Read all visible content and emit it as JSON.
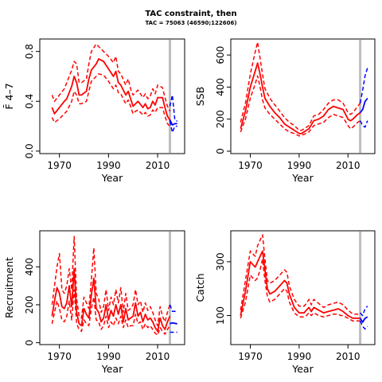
{
  "figure": {
    "title": "TAC constraint, then",
    "subtitle": "TAC = 75063 (46590;122606)"
  },
  "colors": {
    "historic": "#ff0000",
    "projection": "#0000ff",
    "vline": "#bebebe",
    "axis": "#000000"
  },
  "chart_data": [
    {
      "id": "fbar",
      "type": "line",
      "ylabel": "F̄ 4–7",
      "xlabel": "Year",
      "xlim": [
        1962,
        2021
      ],
      "ylim": [
        -0.02,
        0.9
      ],
      "xticks": [
        1970,
        1990,
        2010
      ],
      "xtick_labels": [
        "1970",
        "1990",
        "2010"
      ],
      "yticks": [
        0,
        0.4,
        0.8
      ],
      "ytick_labels": [
        "0.0",
        "0.4",
        "0.8"
      ],
      "vline": 2015,
      "historic": {
        "x": [
          1967,
          1968,
          1970,
          1972,
          1973,
          1975,
          1976,
          1977,
          1978,
          1979,
          1981,
          1982,
          1983,
          1985,
          1986,
          1988,
          1990,
          1992,
          1993,
          1994,
          1995,
          1997,
          1998,
          1999,
          2000,
          2001,
          2002,
          2004,
          2005,
          2006,
          2007,
          2008,
          2009,
          2010,
          2012,
          2013,
          2014,
          2015
        ],
        "median": [
          0.35,
          0.3,
          0.35,
          0.4,
          0.42,
          0.52,
          0.6,
          0.55,
          0.45,
          0.45,
          0.48,
          0.58,
          0.65,
          0.7,
          0.74,
          0.72,
          0.66,
          0.6,
          0.64,
          0.55,
          0.53,
          0.45,
          0.48,
          0.42,
          0.36,
          0.38,
          0.4,
          0.35,
          0.38,
          0.34,
          0.35,
          0.4,
          0.37,
          0.43,
          0.43,
          0.35,
          0.28,
          0.25
        ],
        "lower": [
          0.27,
          0.23,
          0.26,
          0.3,
          0.32,
          0.4,
          0.48,
          0.45,
          0.38,
          0.38,
          0.4,
          0.48,
          0.56,
          0.6,
          0.62,
          0.61,
          0.56,
          0.5,
          0.53,
          0.47,
          0.46,
          0.38,
          0.41,
          0.36,
          0.3,
          0.32,
          0.33,
          0.29,
          0.31,
          0.28,
          0.29,
          0.33,
          0.31,
          0.35,
          0.35,
          0.28,
          0.22,
          0.2
        ],
        "upper": [
          0.45,
          0.4,
          0.45,
          0.5,
          0.55,
          0.65,
          0.72,
          0.7,
          0.55,
          0.55,
          0.58,
          0.7,
          0.8,
          0.86,
          0.84,
          0.8,
          0.76,
          0.71,
          0.76,
          0.64,
          0.62,
          0.53,
          0.58,
          0.5,
          0.45,
          0.47,
          0.49,
          0.43,
          0.46,
          0.42,
          0.44,
          0.5,
          0.46,
          0.53,
          0.51,
          0.43,
          0.36,
          0.32
        ]
      },
      "projection": {
        "x": [
          2015,
          2016,
          2017,
          2018
        ],
        "median": [
          0.25,
          0.21,
          0.22,
          0.22
        ],
        "lower": [
          0.24,
          0.15,
          0.2,
          0.2
        ],
        "upper": [
          0.36,
          0.45,
          0.25,
          0.24
        ]
      }
    },
    {
      "id": "ssb",
      "type": "line",
      "ylabel": "SSB",
      "xlabel": "Year",
      "xlim": [
        1962,
        2021
      ],
      "ylim": [
        -15,
        700
      ],
      "xticks": [
        1970,
        1990,
        2010
      ],
      "xtick_labels": [
        "1970",
        "1990",
        "2010"
      ],
      "yticks": [
        0,
        200,
        400,
        600
      ],
      "ytick_labels": [
        "0",
        "200",
        "400",
        "600"
      ],
      "vline": 2015,
      "historic": {
        "x": [
          1966,
          1968,
          1970,
          1972,
          1973,
          1974,
          1975,
          1976,
          1978,
          1980,
          1982,
          1984,
          1986,
          1988,
          1990,
          1991,
          1992,
          1994,
          1996,
          1998,
          2000,
          2002,
          2004,
          2006,
          2008,
          2010,
          2011,
          2012,
          2014,
          2015
        ],
        "median": [
          140,
          250,
          400,
          500,
          550,
          480,
          400,
          330,
          280,
          240,
          210,
          170,
          150,
          130,
          110,
          110,
          120,
          140,
          190,
          200,
          220,
          260,
          280,
          270,
          260,
          200,
          190,
          200,
          230,
          240
        ],
        "lower": [
          120,
          200,
          330,
          420,
          470,
          400,
          320,
          270,
          230,
          200,
          170,
          140,
          120,
          110,
          95,
          100,
          105,
          120,
          160,
          170,
          180,
          210,
          230,
          220,
          210,
          160,
          140,
          150,
          180,
          190
        ],
        "upper": [
          180,
          300,
          480,
          620,
          680,
          580,
          480,
          390,
          330,
          290,
          250,
          210,
          180,
          160,
          130,
          130,
          140,
          160,
          220,
          230,
          260,
          300,
          320,
          320,
          300,
          240,
          230,
          240,
          280,
          300
        ]
      },
      "projection": {
        "x": [
          2015,
          2016,
          2017,
          2018
        ],
        "median": [
          240,
          260,
          310,
          330
        ],
        "lower": [
          190,
          160,
          150,
          190
        ],
        "upper": [
          300,
          380,
          470,
          520
        ]
      }
    },
    {
      "id": "recruitment",
      "type": "line",
      "ylabel": "Recruitment",
      "xlabel": "Year",
      "xlim": [
        1962,
        2021
      ],
      "ylim": [
        -10,
        590
      ],
      "xticks": [
        1970,
        1990,
        2010
      ],
      "xtick_labels": [
        "1970",
        "1990",
        "2010"
      ],
      "yticks": [
        0,
        200,
        400
      ],
      "ytick_labels": [
        "0",
        "200",
        "400"
      ],
      "vline": 2015,
      "historic": {
        "x": [
          1967,
          1968,
          1969,
          1970,
          1971,
          1972,
          1973,
          1974,
          1975,
          1976,
          1977,
          1978,
          1979,
          1980,
          1981,
          1982,
          1983,
          1984,
          1985,
          1986,
          1987,
          1988,
          1989,
          1990,
          1991,
          1992,
          1993,
          1994,
          1995,
          1996,
          1997,
          1998,
          1999,
          2000,
          2001,
          2002,
          2003,
          2004,
          2005,
          2006,
          2007,
          2008,
          2009,
          2010,
          2011,
          2012,
          2013,
          2014,
          2015
        ],
        "median": [
          140,
          220,
          290,
          260,
          190,
          180,
          210,
          300,
          190,
          390,
          160,
          100,
          90,
          180,
          150,
          130,
          250,
          340,
          180,
          160,
          110,
          130,
          200,
          120,
          170,
          140,
          200,
          150,
          200,
          110,
          180,
          120,
          130,
          140,
          210,
          140,
          160,
          110,
          150,
          120,
          130,
          110,
          80,
          60,
          130,
          90,
          70,
          110,
          140
        ],
        "lower": [
          100,
          160,
          220,
          180,
          120,
          110,
          140,
          220,
          120,
          280,
          100,
          70,
          60,
          120,
          100,
          90,
          180,
          240,
          120,
          110,
          70,
          90,
          140,
          80,
          110,
          90,
          130,
          100,
          140,
          80,
          120,
          80,
          90,
          90,
          150,
          100,
          110,
          70,
          100,
          80,
          90,
          70,
          50,
          40,
          80,
          60,
          45,
          70,
          90
        ],
        "upper": [
          200,
          300,
          400,
          470,
          280,
          260,
          300,
          390,
          280,
          560,
          230,
          140,
          130,
          240,
          210,
          180,
          330,
          500,
          260,
          230,
          160,
          190,
          280,
          170,
          240,
          200,
          280,
          210,
          290,
          160,
          260,
          170,
          180,
          200,
          280,
          200,
          220,
          160,
          210,
          170,
          190,
          160,
          120,
          90,
          190,
          140,
          110,
          160,
          200
        ]
      },
      "projection": {
        "x": [
          2015,
          2016,
          2017,
          2018
        ],
        "median": [
          100,
          105,
          102,
          100
        ],
        "lower": [
          55,
          55,
          55,
          55
        ],
        "upper": [
          200,
          165,
          165,
          165
        ]
      }
    },
    {
      "id": "catch",
      "type": "line",
      "ylabel": "Catch",
      "xlabel": "Year",
      "xlim": [
        1962,
        2021
      ],
      "ylim": [
        -8,
        415
      ],
      "xticks": [
        1970,
        1990,
        2010
      ],
      "xtick_labels": [
        "1970",
        "1990",
        "2010"
      ],
      "yticks": [
        100,
        300
      ],
      "ytick_labels": [
        "100",
        "300"
      ],
      "vline": 2015,
      "historic": {
        "x": [
          1966,
          1968,
          1970,
          1971,
          1972,
          1973,
          1974,
          1975,
          1976,
          1977,
          1978,
          1980,
          1982,
          1984,
          1985,
          1986,
          1988,
          1990,
          1992,
          1993,
          1994,
          1995,
          1996,
          1998,
          2000,
          2002,
          2004,
          2006,
          2007,
          2008,
          2010,
          2012,
          2014,
          2015
        ],
        "median": [
          100,
          190,
          300,
          290,
          280,
          300,
          320,
          340,
          270,
          200,
          180,
          190,
          210,
          230,
          220,
          180,
          130,
          110,
          110,
          120,
          130,
          115,
          130,
          120,
          110,
          115,
          120,
          125,
          120,
          115,
          100,
          90,
          90,
          90
        ],
        "lower": [
          90,
          150,
          250,
          240,
          230,
          240,
          270,
          310,
          230,
          170,
          150,
          160,
          180,
          200,
          190,
          150,
          110,
          95,
          95,
          100,
          110,
          100,
          110,
          100,
          95,
          100,
          105,
          105,
          100,
          100,
          90,
          80,
          80,
          80
        ],
        "upper": [
          120,
          230,
          340,
          330,
          320,
          360,
          380,
          400,
          310,
          230,
          220,
          230,
          250,
          270,
          260,
          210,
          160,
          135,
          135,
          145,
          160,
          140,
          160,
          145,
          130,
          140,
          145,
          150,
          145,
          140,
          120,
          105,
          105,
          110
        ]
      },
      "projection": {
        "x": [
          2015,
          2016,
          2017,
          2018
        ],
        "median": [
          90,
          75,
          90,
          95
        ],
        "lower": [
          80,
          60,
          50,
          60
        ],
        "upper": [
          110,
          100,
          125,
          135
        ]
      }
    }
  ]
}
